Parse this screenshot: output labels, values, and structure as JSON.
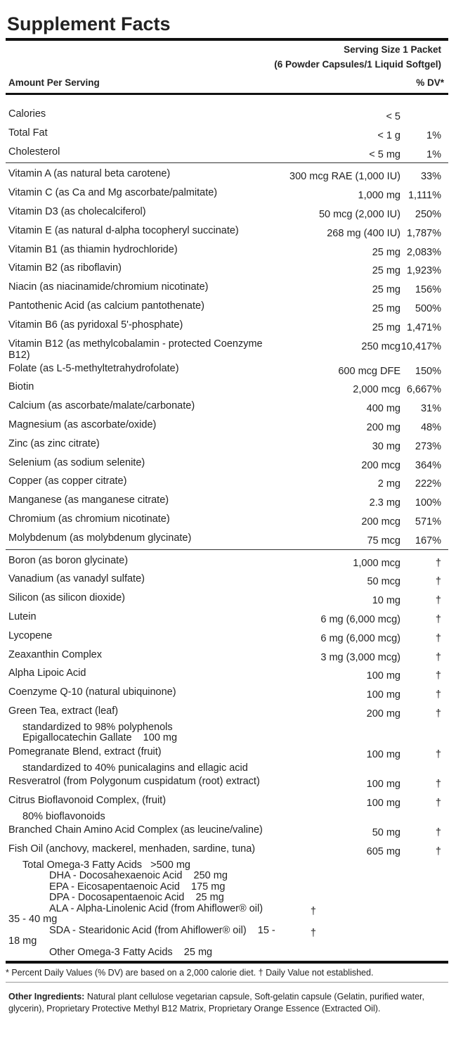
{
  "header": {
    "title": "Supplement Facts",
    "serving_size": "Serving Size 1 Packet",
    "serving_detail": "(6 Powder Capsules/1 Liquid Softgel)",
    "amount_label": "Amount Per Serving",
    "dv_label": "% DV*"
  },
  "sections": [
    {
      "rows": [
        {
          "name": "Calories",
          "amount": "< 5"
        },
        {
          "name": "Total Fat",
          "amount": "< 1 g",
          "dv": "1%"
        },
        {
          "name": "Cholesterol",
          "amount": "< 5 mg",
          "dv": "1%"
        }
      ]
    },
    {
      "rows": [
        {
          "name": "Vitamin A (as natural beta carotene)",
          "amount": "300 mcg RAE (1,000 IU)",
          "dv": "33%"
        },
        {
          "name": "Vitamin C (as Ca and Mg ascorbate/palmitate)",
          "amount": "1,000 mg",
          "dv": "1,111%"
        },
        {
          "name": "Vitamin D3 (as cholecalciferol)",
          "amount": "50 mcg (2,000 IU)",
          "dv": "250%"
        },
        {
          "name": "Vitamin E (as natural d-alpha tocopheryl succinate)",
          "amount": "268 mg (400 IU)",
          "dv": "1,787%"
        },
        {
          "name": "Vitamin B1 (as thiamin hydrochloride)",
          "amount": "25 mg",
          "dv": "2,083%"
        },
        {
          "name": "Vitamin B2 (as riboflavin)",
          "amount": "25 mg",
          "dv": "1,923%"
        },
        {
          "name": "Niacin (as niacinamide/chromium nicotinate)",
          "amount": "25 mg",
          "dv": "156%"
        },
        {
          "name": "Pantothenic Acid (as calcium pantothenate)",
          "amount": "25 mg",
          "dv": "500%"
        },
        {
          "name": "Vitamin B6 (as pyridoxal 5'-phosphate)",
          "amount": "25 mg",
          "dv": "1,471%"
        },
        {
          "name": "Vitamin B12 (as methylcobalamin - protected Coenzyme B12)",
          "amount": "250 mcg",
          "dv": "10,417%"
        },
        {
          "name": "Folate (as L-5-methyltetrahydrofolate)",
          "amount": "600 mcg DFE",
          "dv": "150%"
        },
        {
          "name": "Biotin",
          "amount": "2,000 mcg",
          "dv": "6,667%"
        },
        {
          "name": "Calcium (as ascorbate/malate/carbonate)",
          "amount": "400 mg",
          "dv": "31%"
        },
        {
          "name": "Magnesium (as ascorbate/oxide)",
          "amount": "200 mg",
          "dv": "48%"
        },
        {
          "name": "Zinc (as zinc citrate)",
          "amount": "30 mg",
          "dv": "273%"
        },
        {
          "name": "Selenium (as sodium selenite)",
          "amount": "200 mcg",
          "dv": "364%"
        },
        {
          "name": "Copper (as copper citrate)",
          "amount": "2 mg",
          "dv": "222%"
        },
        {
          "name": "Manganese (as manganese citrate)",
          "amount": "2.3 mg",
          "dv": "100%"
        },
        {
          "name": "Chromium (as chromium nicotinate)",
          "amount": "200 mcg",
          "dv": "571%"
        },
        {
          "name": "Molybdenum (as molybdenum glycinate)",
          "amount": "75 mcg",
          "dv": "167%"
        }
      ]
    },
    {
      "rows": [
        {
          "name": "Boron (as boron glycinate)",
          "amount": "1,000 mcg",
          "dv": "†"
        },
        {
          "name": "Vanadium (as vanadyl sulfate)",
          "amount": "50 mcg",
          "dv": "†"
        },
        {
          "name": "Silicon (as silicon dioxide)",
          "amount": "10 mg",
          "dv": "†"
        },
        {
          "name": "Lutein",
          "amount": "6 mg (6,000 mcg)",
          "dv": "†"
        },
        {
          "name": "Lycopene",
          "amount": "6 mg (6,000 mcg)",
          "dv": "†"
        },
        {
          "name": "Zeaxanthin Complex",
          "amount": "3 mg (3,000 mcg)",
          "dv": "†"
        },
        {
          "name": "Alpha Lipoic Acid",
          "amount": "100 mg",
          "dv": "†"
        },
        {
          "name": "Coenzyme Q-10 (natural ubiquinone)",
          "amount": "100 mg",
          "dv": "†"
        },
        {
          "name": "Green Tea, extract (leaf)",
          "amount": "200 mg",
          "dv": "†",
          "details": [
            {
              "text": "standardized to 98% polyphenols"
            },
            {
              "text": "Epigallocatechin Gallate    100 mg"
            }
          ]
        },
        {
          "name": "Pomegranate Blend, extract (fruit)",
          "amount": "100 mg",
          "dv": "†",
          "details": [
            {
              "text": "standardized to 40% punicalagins and ellagic acid"
            }
          ]
        },
        {
          "name": "Resveratrol (from Polygonum cuspidatum (root) extract)",
          "amount": "100 mg",
          "dv": "†"
        },
        {
          "name": "Citrus Bioflavonoid Complex, (fruit)",
          "amount": "100 mg",
          "dv": "†",
          "details": [
            {
              "text": "80% bioflavonoids"
            }
          ]
        },
        {
          "name": "Branched Chain Amino Acid Complex (as leucine/valine)",
          "amount": "50 mg",
          "dv": "†"
        },
        {
          "name": "Fish Oil (anchovy, mackerel, menhaden, sardine, tuna)",
          "amount": "605 mg",
          "dv": "†",
          "details": [
            {
              "text": "Total Omega-3 Fatty Acids   >500 mg",
              "items": [
                {
                  "text": "DHA - Docosahexaenoic Acid    250 mg"
                },
                {
                  "text": "EPA - Eicosapentaenoic Acid    175 mg"
                },
                {
                  "text": "DPA - Docosapentaenoic Acid    25 mg"
                },
                {
                  "text": "ALA - Alpha-Linolenic Acid (from Ahiflower® oil)    35 - 40 mg",
                  "dv": "†"
                },
                {
                  "text": "SDA - Stearidonic Acid (from Ahiflower® oil)    15 - 18 mg",
                  "dv": "†"
                },
                {
                  "text": "Other Omega-3 Fatty Acids    25 mg"
                }
              ]
            }
          ]
        }
      ]
    }
  ],
  "footnote": "* Percent Daily Values (% DV) are based on a 2,000 calorie diet. † Daily Value not established.",
  "other_ingredients": {
    "label": "Other Ingredients:",
    "text": "Natural plant cellulose vegetarian capsule, Soft-gelatin capsule (Gelatin, purified water, glycerin), Proprietary Protective Methyl B12 Matrix, Proprietary Orange Essence (Extracted Oil)."
  }
}
